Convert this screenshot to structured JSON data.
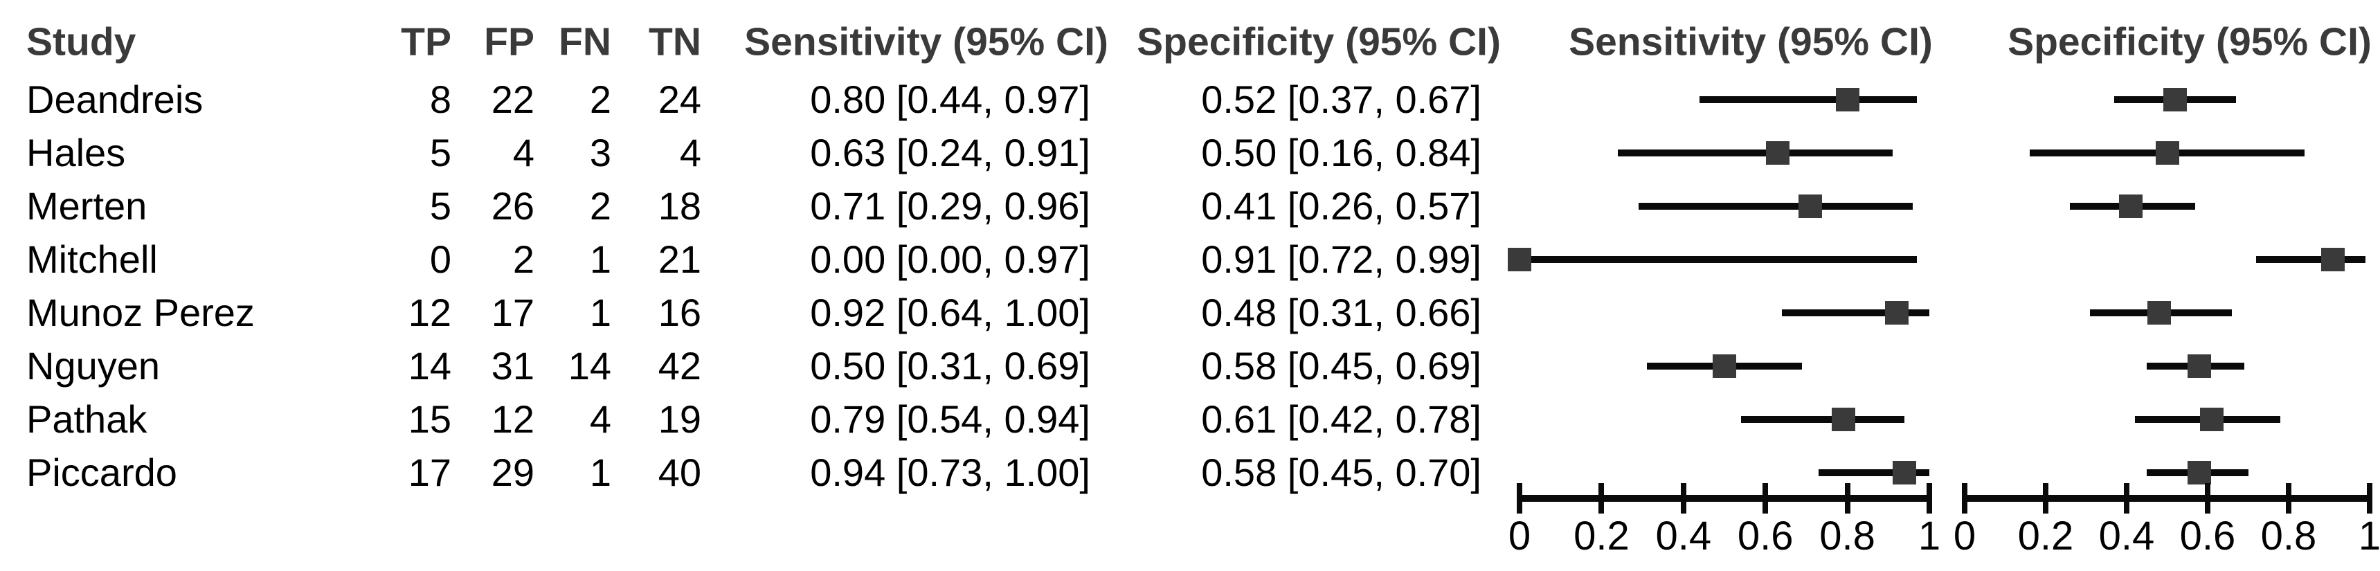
{
  "headers": {
    "study": "Study",
    "tp": "TP",
    "fp": "FP",
    "fn": "FN",
    "tn": "TN",
    "sensitivity_col": "Sensitivity (95% CI)",
    "specificity_col": "Specificity (95% CI)",
    "sensitivity_plot": "Sensitivity (95% CI)",
    "specificity_plot": "Specificity (95% CI)"
  },
  "rows": [
    {
      "study": "Deandreis",
      "tp": "8",
      "fp": "22",
      "fn": "2",
      "tn": "24",
      "sens_text": "0.80 [0.44, 0.97]",
      "spec_text": "0.52 [0.37, 0.67]",
      "sens": 0.8,
      "sens_lo": 0.44,
      "sens_hi": 0.97,
      "spec": 0.52,
      "spec_lo": 0.37,
      "spec_hi": 0.67
    },
    {
      "study": "Hales",
      "tp": "5",
      "fp": "4",
      "fn": "3",
      "tn": "4",
      "sens_text": "0.63 [0.24, 0.91]",
      "spec_text": "0.50 [0.16, 0.84]",
      "sens": 0.63,
      "sens_lo": 0.24,
      "sens_hi": 0.91,
      "spec": 0.5,
      "spec_lo": 0.16,
      "spec_hi": 0.84
    },
    {
      "study": "Merten",
      "tp": "5",
      "fp": "26",
      "fn": "2",
      "tn": "18",
      "sens_text": "0.71 [0.29, 0.96]",
      "spec_text": "0.41 [0.26, 0.57]",
      "sens": 0.71,
      "sens_lo": 0.29,
      "sens_hi": 0.96,
      "spec": 0.41,
      "spec_lo": 0.26,
      "spec_hi": 0.57
    },
    {
      "study": "Mitchell",
      "tp": "0",
      "fp": "2",
      "fn": "1",
      "tn": "21",
      "sens_text": "0.00 [0.00, 0.97]",
      "spec_text": "0.91 [0.72, 0.99]",
      "sens": 0.0,
      "sens_lo": 0.0,
      "sens_hi": 0.97,
      "spec": 0.91,
      "spec_lo": 0.72,
      "spec_hi": 0.99
    },
    {
      "study": "Munoz Perez",
      "tp": "12",
      "fp": "17",
      "fn": "1",
      "tn": "16",
      "sens_text": "0.92 [0.64, 1.00]",
      "spec_text": "0.48 [0.31, 0.66]",
      "sens": 0.92,
      "sens_lo": 0.64,
      "sens_hi": 1.0,
      "spec": 0.48,
      "spec_lo": 0.31,
      "spec_hi": 0.66
    },
    {
      "study": "Nguyen",
      "tp": "14",
      "fp": "31",
      "fn": "14",
      "tn": "42",
      "sens_text": "0.50 [0.31, 0.69]",
      "spec_text": "0.58 [0.45, 0.69]",
      "sens": 0.5,
      "sens_lo": 0.31,
      "sens_hi": 0.69,
      "spec": 0.58,
      "spec_lo": 0.45,
      "spec_hi": 0.69
    },
    {
      "study": "Pathak",
      "tp": "15",
      "fp": "12",
      "fn": "4",
      "tn": "19",
      "sens_text": "0.79 [0.54, 0.94]",
      "spec_text": "0.61 [0.42, 0.78]",
      "sens": 0.79,
      "sens_lo": 0.54,
      "sens_hi": 0.94,
      "spec": 0.61,
      "spec_lo": 0.42,
      "spec_hi": 0.78
    },
    {
      "study": "Piccardo",
      "tp": "17",
      "fp": "29",
      "fn": "1",
      "tn": "40",
      "sens_text": "0.94 [0.73, 1.00]",
      "spec_text": "0.58 [0.45, 0.70]",
      "sens": 0.94,
      "sens_lo": 0.73,
      "sens_hi": 1.0,
      "spec": 0.58,
      "spec_lo": 0.45,
      "spec_hi": 0.7
    }
  ],
  "axis": {
    "min": 0,
    "max": 1,
    "tick_values": [
      0,
      0.2,
      0.4,
      0.6,
      0.8,
      1
    ],
    "tick_labels": [
      "0",
      "0.2",
      "0.4",
      "0.6",
      "0.8",
      "1"
    ]
  },
  "colors": {
    "background": "#ffffff",
    "text": "#000000",
    "header_text": "#3a3a3a",
    "marker": "#3a3a3a",
    "ci_line": "#0a0a0a",
    "axis": "#0a0a0a"
  },
  "chart_data": [
    {
      "type": "scatter",
      "variant": "forest",
      "title": "Sensitivity (95% CI)",
      "categories": [
        "Deandreis",
        "Hales",
        "Merten",
        "Mitchell",
        "Munoz Perez",
        "Nguyen",
        "Pathak",
        "Piccardo"
      ],
      "values": [
        0.8,
        0.63,
        0.71,
        0.0,
        0.92,
        0.5,
        0.79,
        0.94
      ],
      "ci_low": [
        0.44,
        0.24,
        0.29,
        0.0,
        0.64,
        0.31,
        0.54,
        0.73
      ],
      "ci_high": [
        0.97,
        0.91,
        0.96,
        0.97,
        1.0,
        0.69,
        0.94,
        1.0
      ],
      "xlabel": "",
      "ylabel": "",
      "xlim": [
        0,
        1
      ],
      "xticks": [
        0,
        0.2,
        0.4,
        0.6,
        0.8,
        1
      ],
      "grid": false,
      "legend": false
    },
    {
      "type": "scatter",
      "variant": "forest",
      "title": "Specificity (95% CI)",
      "categories": [
        "Deandreis",
        "Hales",
        "Merten",
        "Mitchell",
        "Munoz Perez",
        "Nguyen",
        "Pathak",
        "Piccardo"
      ],
      "values": [
        0.52,
        0.5,
        0.41,
        0.91,
        0.48,
        0.58,
        0.61,
        0.58
      ],
      "ci_low": [
        0.37,
        0.16,
        0.26,
        0.72,
        0.31,
        0.45,
        0.42,
        0.45
      ],
      "ci_high": [
        0.67,
        0.84,
        0.57,
        0.99,
        0.66,
        0.69,
        0.78,
        0.7
      ],
      "xlabel": "",
      "ylabel": "",
      "xlim": [
        0,
        1
      ],
      "xticks": [
        0,
        0.2,
        0.4,
        0.6,
        0.8,
        1
      ],
      "grid": false,
      "legend": false
    }
  ]
}
